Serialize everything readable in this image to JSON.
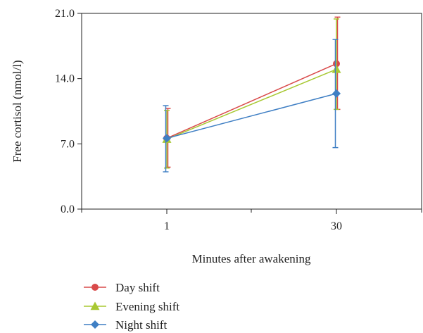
{
  "chart_data": {
    "type": "line",
    "x": [
      1,
      30
    ],
    "xticks": [
      "1",
      "30"
    ],
    "yticks": [
      "0.0",
      "7.0",
      "14.0",
      "21.0"
    ],
    "ylim": [
      0,
      21
    ],
    "xlabel": "Minutes after awakening",
    "ylabel": "Free cortisol (nmol/l)",
    "legend_position": "bottom-left",
    "grid": false,
    "series": [
      {
        "name": "Day shift",
        "marker": "circle",
        "color": "#d94a4a",
        "values": [
          7.6,
          15.6
        ],
        "err_low": [
          4.5,
          10.7
        ],
        "err_high": [
          10.8,
          20.6
        ]
      },
      {
        "name": "Evening shift",
        "marker": "triangle",
        "color": "#a8c832",
        "values": [
          7.5,
          15.0
        ],
        "err_low": [
          4.4,
          10.7
        ],
        "err_high": [
          10.6,
          20.4
        ]
      },
      {
        "name": "Night shift",
        "marker": "diamond",
        "color": "#3f7fc4",
        "values": [
          7.6,
          12.4
        ],
        "err_low": [
          4.0,
          6.6
        ],
        "err_high": [
          11.1,
          18.2
        ]
      }
    ]
  }
}
